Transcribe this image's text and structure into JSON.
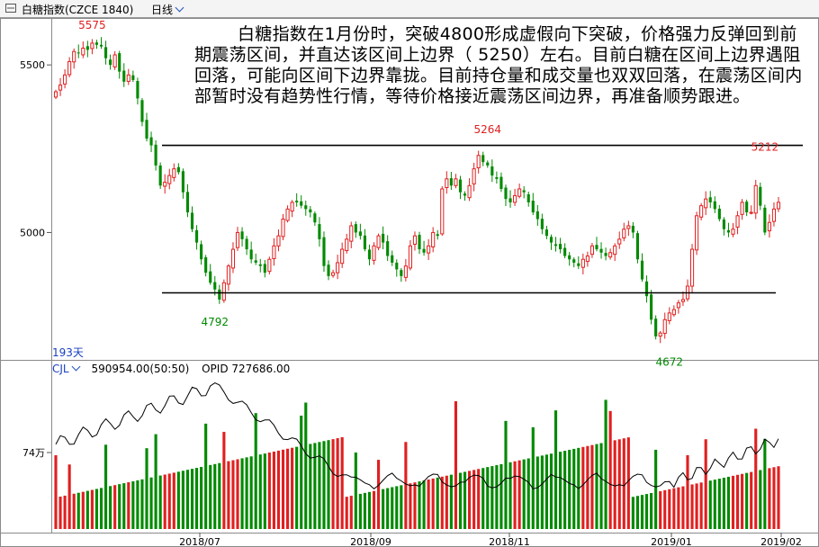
{
  "window": {
    "title": "白糖指数(CZCE 1840)",
    "period": "日线"
  },
  "annotation": "白糖指数在1月份时，突破4800形成虚假向下突破，价格强力反弹回到前期震荡区间，并直达该区间上边界（ 5250）左右。目前白糖在区间上边界遇阻回落，可能向区间下边界靠拢。目前持仓量和成交量也双双回落，在震荡区间内部暂时没有趋势性行情，等待价格接近震荡区间边界，再准备顺势跟进。",
  "volume_header": {
    "indicator": "CJL",
    "value": "590954.00(50:50)",
    "opid": "OPID 727686.00"
  },
  "colors": {
    "up": "#e02020",
    "down": "#008a00",
    "opid_line": "#000000",
    "peak_label": "#e02020",
    "trough_label": "#008a00"
  },
  "chart_data": [
    {
      "type": "candlestick",
      "ylim": [
        4620,
        5640
      ],
      "y_ticks": [
        "5500",
        "5000"
      ],
      "x_ticks": [
        "2018/07",
        "2018/09",
        "2018/11",
        "2019/01",
        "2019/02"
      ],
      "days_label": "193天",
      "annotations": [
        {
          "label": "5575",
          "kind": "peak"
        },
        {
          "label": "5264",
          "kind": "peak"
        },
        {
          "label": "5212",
          "kind": "peak"
        },
        {
          "label": "4792",
          "kind": "trough"
        },
        {
          "label": "4672",
          "kind": "trough"
        }
      ],
      "reference_lines": [
        5260,
        4820
      ],
      "close_series": [
        5420,
        5440,
        5470,
        5510,
        5540,
        5535,
        5550,
        5545,
        5565,
        5560,
        5555,
        5520,
        5500,
        5530,
        5480,
        5450,
        5470,
        5455,
        5400,
        5330,
        5280,
        5260,
        5200,
        5140,
        5150,
        5170,
        5190,
        5180,
        5120,
        5060,
        5010,
        4970,
        4920,
        4880,
        4850,
        4830,
        4800,
        4850,
        4900,
        4950,
        5000,
        4980,
        4950,
        4920,
        4910,
        4900,
        4880,
        4920,
        4960,
        4990,
        5040,
        5070,
        5090,
        5090,
        5080,
        5070,
        5060,
        5030,
        4980,
        4900,
        4870,
        4880,
        4910,
        4950,
        4980,
        5020,
        5000,
        4990,
        4950,
        4920,
        4960,
        4990,
        4970,
        4930,
        4910,
        4890,
        4870,
        4900,
        4960,
        4990,
        4950,
        4940,
        4960,
        5000,
        4990,
        5130,
        5160,
        5140,
        5160,
        5120,
        5110,
        5140,
        5190,
        5230,
        5210,
        5200,
        5170,
        5160,
        5130,
        5100,
        5090,
        5110,
        5130,
        5120,
        5090,
        5060,
        5040,
        5010,
        4990,
        4970,
        4960,
        4950,
        4930,
        4920,
        4910,
        4900,
        4920,
        4930,
        4960,
        4950,
        4940,
        4930,
        4940,
        4960,
        4980,
        5010,
        5020,
        5000,
        4920,
        4860,
        4810,
        4740,
        4690,
        4700,
        4740,
        4760,
        4770,
        4790,
        4800,
        4840,
        4950,
        5050,
        5080,
        5100,
        5090,
        5070,
        5040,
        5010,
        5000,
        5010,
        5050,
        5090,
        5060,
        5060,
        5140,
        5080,
        5000,
        5030,
        5070,
        5090
      ]
    },
    {
      "type": "bar",
      "name": "CJL",
      "tick_labels": [
        "74万"
      ],
      "value": 590954,
      "opid": 727686
    }
  ]
}
